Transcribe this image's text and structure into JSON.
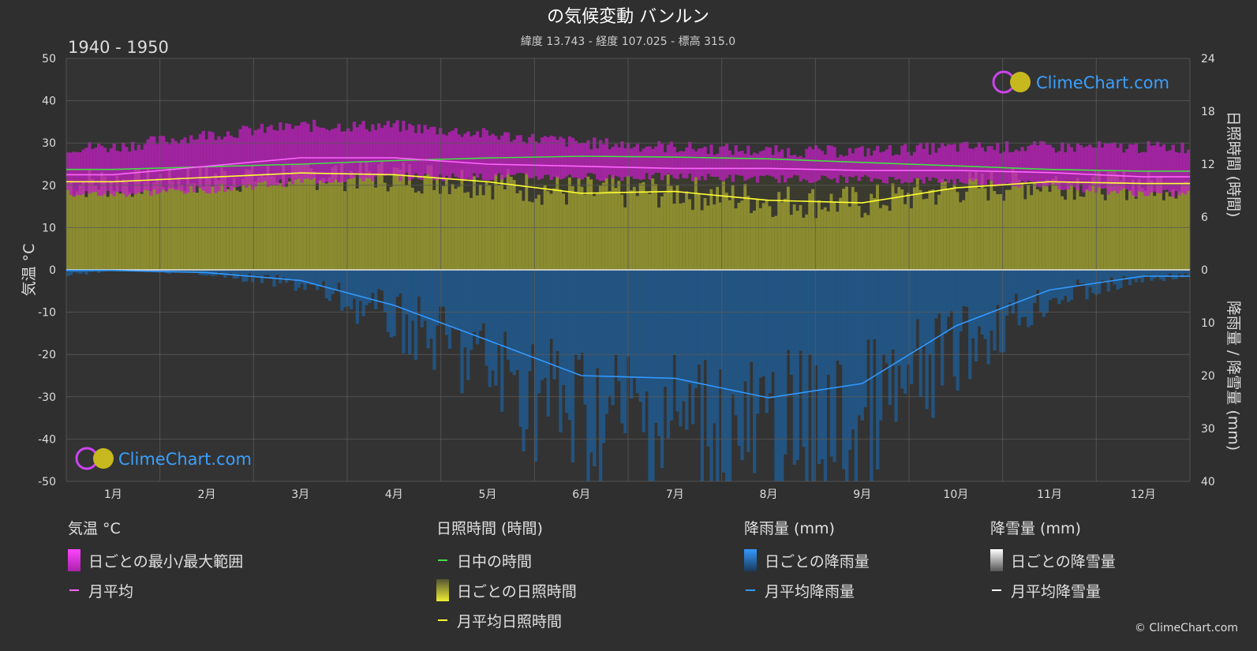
{
  "header": {
    "title": "の気候変動 バンルン",
    "subtitle": "緯度 13.743 - 経度 107.025 - 標高 315.0",
    "period": "1940 - 1950"
  },
  "watermark": "ClimeChart.com",
  "copyright": "© ClimeChart.com",
  "chart_data": {
    "type": "line",
    "categories": [
      "1月",
      "2月",
      "3月",
      "4月",
      "5月",
      "6月",
      "7月",
      "8月",
      "9月",
      "10月",
      "11月",
      "12月"
    ],
    "axes": {
      "left": {
        "label": "気温 °C",
        "ticks": [
          "50",
          "40",
          "30",
          "20",
          "10",
          "0",
          "-10",
          "-20",
          "-30",
          "-40",
          "-50"
        ],
        "range": [
          -50,
          50
        ]
      },
      "right_top": {
        "label": "日照時間 (時間)",
        "ticks": [
          "24",
          "18",
          "12",
          "6",
          "0"
        ],
        "range": [
          0,
          24
        ]
      },
      "right_bottom": {
        "label": "降雨量 / 降雪量 (mm)",
        "ticks": [
          "10",
          "20",
          "30",
          "40"
        ],
        "range": [
          0,
          40
        ]
      }
    },
    "grid": true,
    "series": [
      {
        "name": "月平均",
        "unit": "°C",
        "color": "#ff66ff",
        "values": [
          22.5,
          24.5,
          26.5,
          26.5,
          25.0,
          24.5,
          24.0,
          24.0,
          23.5,
          23.5,
          23.0,
          22.0
        ]
      },
      {
        "name": "日中の時間",
        "unit": "時間",
        "color": "#44dd44",
        "values": [
          11.4,
          11.7,
          12.0,
          12.4,
          12.7,
          12.9,
          12.8,
          12.6,
          12.2,
          11.8,
          11.4,
          11.2
        ]
      },
      {
        "name": "月平均日照時間",
        "unit": "時間",
        "color": "#ffff33",
        "values": [
          10.0,
          10.5,
          11.0,
          10.8,
          10.0,
          8.7,
          8.9,
          7.9,
          7.6,
          9.3,
          10.0,
          9.8
        ]
      },
      {
        "name": "月平均降雨量",
        "unit": "mm",
        "color": "#3399ff",
        "values": [
          0.1,
          0.5,
          2.0,
          6.7,
          13.3,
          20.0,
          20.5,
          24.2,
          21.5,
          10.6,
          3.8,
          1.2
        ]
      },
      {
        "name": "月平均降雪量",
        "unit": "mm",
        "color": "#ffffff",
        "values": [
          0,
          0,
          0,
          0,
          0,
          0,
          0,
          0,
          0,
          0,
          0,
          0
        ]
      }
    ],
    "daily_range": {
      "name": "日ごとの最小/最大範囲",
      "min": [
        18,
        19,
        21,
        22,
        22,
        22,
        22,
        21.5,
        21.5,
        21,
        20,
        18
      ],
      "max": [
        29,
        32,
        34,
        34,
        32,
        30,
        29,
        28,
        28,
        29,
        29,
        29
      ]
    }
  },
  "legend": {
    "groups": [
      {
        "title": "気温 °C",
        "items": [
          {
            "label": "日ごとの最小/最大範囲",
            "kind": "box",
            "color": "#dd22dd"
          },
          {
            "label": "月平均",
            "kind": "line",
            "color": "#ff66ff"
          }
        ]
      },
      {
        "title": "日照時間 (時間)",
        "items": [
          {
            "label": "日中の時間",
            "kind": "line",
            "color": "#44dd44"
          },
          {
            "label": "日ごとの日照時間",
            "kind": "box",
            "color": "#c8c83a"
          },
          {
            "label": "月平均日照時間",
            "kind": "line",
            "color": "#ffff33"
          }
        ]
      },
      {
        "title": "降雨量 (mm)",
        "items": [
          {
            "label": "日ごとの降雨量",
            "kind": "box",
            "color": "#2a7bc8"
          },
          {
            "label": "月平均降雨量",
            "kind": "line",
            "color": "#3399ff"
          }
        ]
      },
      {
        "title": "降雪量 (mm)",
        "items": [
          {
            "label": "日ごとの降雪量",
            "kind": "box",
            "color": "#dddddd"
          },
          {
            "label": "月平均降雪量",
            "kind": "line",
            "color": "#ffffff"
          }
        ]
      }
    ]
  }
}
